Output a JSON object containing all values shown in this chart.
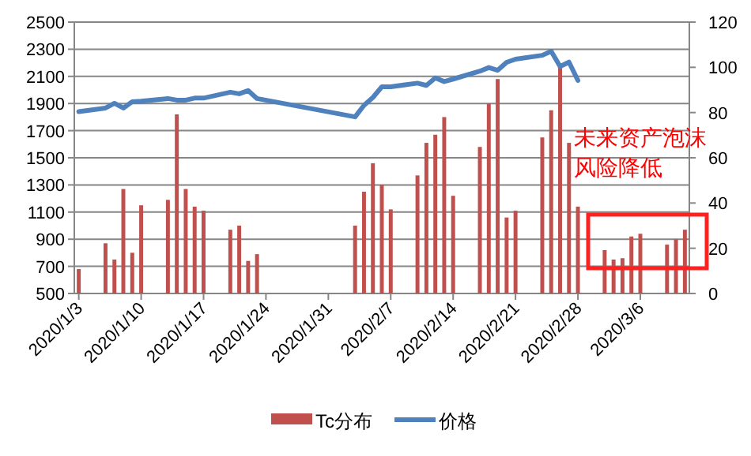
{
  "chart_data": {
    "type": "bar",
    "x": [
      "2020-01-03",
      "2020-01-06",
      "2020-01-07",
      "2020-01-08",
      "2020-01-09",
      "2020-01-10",
      "2020-01-13",
      "2020-01-14",
      "2020-01-15",
      "2020-01-16",
      "2020-01-17",
      "2020-01-20",
      "2020-01-21",
      "2020-01-22",
      "2020-01-23",
      "2020-02-03",
      "2020-02-04",
      "2020-02-05",
      "2020-02-06",
      "2020-02-07",
      "2020-02-10",
      "2020-02-11",
      "2020-02-12",
      "2020-02-13",
      "2020-02-14",
      "2020-02-17",
      "2020-02-18",
      "2020-02-19",
      "2020-02-20",
      "2020-02-21",
      "2020-02-24",
      "2020-02-25",
      "2020-02-26",
      "2020-02-27",
      "2020-02-28",
      "2020-03-02",
      "2020-03-03",
      "2020-03-04",
      "2020-03-05",
      "2020-03-06",
      "2020-03-09",
      "2020-03-10",
      "2020-03-11"
    ],
    "series": [
      {
        "name": "Tc分布",
        "color": "#c0504d",
        "values": [
          680,
          870,
          750,
          1270,
          800,
          1150,
          1190,
          1820,
          1270,
          1140,
          1110,
          970,
          1000,
          740,
          790,
          1000,
          1250,
          1460,
          1300,
          1120,
          1370,
          1610,
          1670,
          1800,
          1220,
          1580,
          1900,
          2080,
          1060,
          1110,
          1650,
          1850,
          2170,
          1610,
          1140,
          820,
          750,
          760,
          920,
          940,
          860,
          900,
          970
        ]
      },
      {
        "name": "价格",
        "type": "line",
        "axis": "y2",
        "color": "#4f81bd",
        "values": [
          80.4,
          82,
          84.1,
          82,
          84.8,
          85,
          86.2,
          85.5,
          85.5,
          86.4,
          86.4,
          89,
          88.3,
          89.7,
          86.2,
          78.1,
          83.2,
          86.7,
          91.4,
          91.4,
          93,
          92,
          95.3,
          93.7,
          94.8,
          98.3,
          99.9,
          98.7,
          102.2,
          103.6,
          105.3,
          107.1,
          100.4,
          102.3,
          94.2,
          null,
          null,
          null,
          null,
          null,
          null,
          null,
          null
        ]
      }
    ],
    "xlim": [
      "2020-01-02T12:00",
      "2020-03-11T12:00"
    ],
    "xticks": [
      {
        "value": "2020-01-03",
        "label": "2020/1/3"
      },
      {
        "value": "2020-01-10",
        "label": "2020/1/10"
      },
      {
        "value": "2020-01-17",
        "label": "2020/1/17"
      },
      {
        "value": "2020-01-24",
        "label": "2020/1/24"
      },
      {
        "value": "2020-01-31",
        "label": "2020/1/31"
      },
      {
        "value": "2020-02-07",
        "label": "2020/2/7"
      },
      {
        "value": "2020-02-14",
        "label": "2020/2/14"
      },
      {
        "value": "2020-02-21",
        "label": "2020/2/21"
      },
      {
        "value": "2020-02-28",
        "label": "2020/2/28"
      },
      {
        "value": "2020-03-06",
        "label": "2020/3/6"
      }
    ],
    "ylim": [
      500,
      2500
    ],
    "yticks": [
      500,
      700,
      900,
      1100,
      1300,
      1500,
      1700,
      1900,
      2100,
      2300,
      2500
    ],
    "y2lim": [
      0,
      120
    ],
    "y2ticks": [
      0,
      20,
      40,
      60,
      80,
      100,
      120
    ],
    "grid": "y",
    "legend": "bottom",
    "annotations": [
      "未来资产泡沫",
      "风险降低"
    ]
  }
}
